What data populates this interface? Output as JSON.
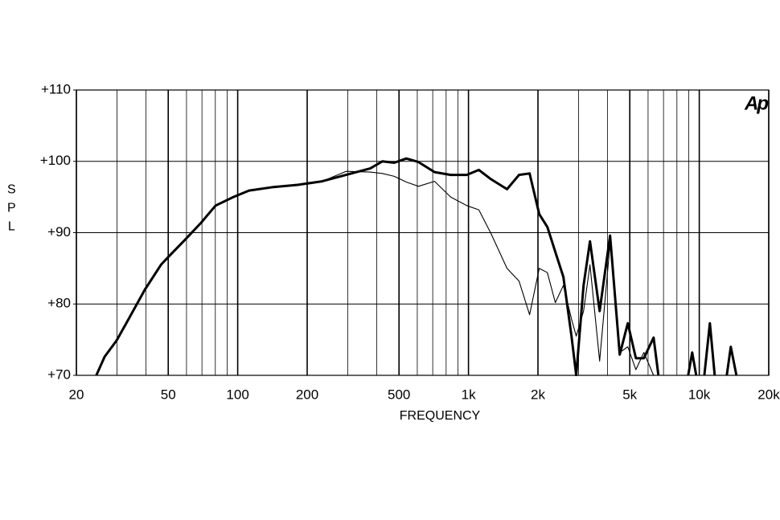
{
  "chart_data": {
    "type": "line",
    "annotation": "Ap",
    "x_label": "FREQUENCY",
    "y_label": "SPL",
    "log_x": true,
    "grid": true,
    "minor_grid": true,
    "xlim": [
      20,
      20000
    ],
    "ylim": [
      70,
      110
    ],
    "xticks": [
      20,
      50,
      100,
      200,
      500,
      {
        "value": 1000,
        "label": "1k"
      },
      {
        "value": 2000,
        "label": "2k"
      },
      {
        "value": 5000,
        "label": "5k"
      },
      {
        "value": 10000,
        "label": "10k"
      },
      {
        "value": 20000,
        "label": "20k"
      }
    ],
    "yticks": [
      {
        "value": 70,
        "label": "+70"
      },
      {
        "value": 80,
        "label": "+80"
      },
      {
        "value": 90,
        "label": "+90"
      },
      {
        "value": 100,
        "label": "+100"
      },
      {
        "value": 110,
        "label": "+110"
      }
    ],
    "x": [
      24.4,
      26.5,
      29.9,
      33.7,
      39.6,
      46.5,
      50.4,
      59.1,
      69.4,
      80.2,
      95.8,
      112,
      143,
      182,
      232,
      295,
      375,
      423,
      477,
      538,
      607,
      713,
      837,
      983,
      1109,
      1251,
      1469,
      1657,
      1840,
      2026,
      2196,
      2378,
      2578,
      2794,
      2931,
      3151,
      3360,
      3700,
      4108,
      4524,
      4902,
      5312,
      5754,
      6338,
      6650,
      7622,
      8950,
      9318,
      9700,
      10100,
      10514,
      11118,
      11668,
      12340,
      13160,
      13700,
      14492
    ],
    "series": [
      {
        "color": "#000000",
        "width": 3,
        "values": [
          70,
          72.6,
          74.9,
          77.9,
          82,
          85.5,
          86.7,
          89,
          91.4,
          93.8,
          95,
          95.9,
          96.4,
          96.7,
          97.2,
          98.1,
          99,
          100,
          99.8,
          100.4,
          99.9,
          98.5,
          98.1,
          98.1,
          98.8,
          97.5,
          96.1,
          98.1,
          98.3,
          92.6,
          90.8,
          87.3,
          83.8,
          75.5,
          70,
          82.6,
          88.8,
          79,
          89.6,
          72.9,
          77.3,
          72.4,
          72.4,
          75.3,
          70,
          null,
          70,
          73.2,
          70,
          null,
          70,
          77.3,
          70,
          null,
          70,
          74,
          70
        ]
      },
      {
        "color": "#000000",
        "width": 1.1,
        "values": [
          70,
          72.6,
          74.9,
          77.9,
          82,
          85.5,
          86.7,
          89,
          91.4,
          93.8,
          95,
          95.9,
          96.4,
          96.7,
          97.2,
          98.6,
          98.5,
          98.3,
          97.9,
          97.1,
          96.5,
          97.2,
          95,
          93.8,
          93.2,
          89.9,
          85,
          83.2,
          78.5,
          85,
          84.4,
          80.2,
          82.6,
          77.9,
          75.5,
          79,
          85.5,
          72,
          88.5,
          73.2,
          74,
          70.8,
          73.2,
          70,
          null,
          null,
          null,
          null,
          null,
          null,
          null,
          null,
          null,
          null,
          null,
          null,
          null
        ]
      }
    ]
  }
}
